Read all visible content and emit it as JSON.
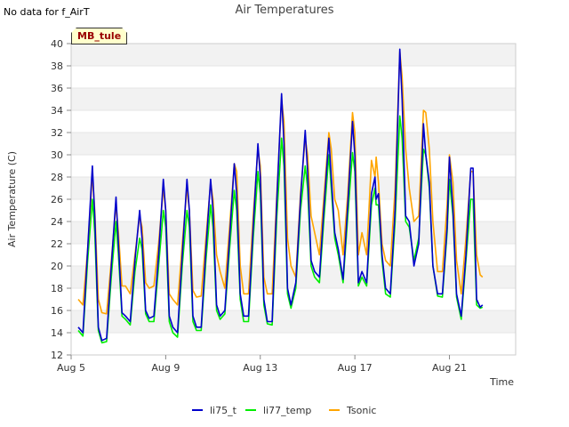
{
  "no_data_note": "No data for f_AirT",
  "site_badge": "MB_tule",
  "chart_data": {
    "type": "line",
    "title": "Air Temperatures",
    "xlabel": "Time",
    "ylabel": "Air Temperature (C)",
    "ylim": [
      12,
      40
    ],
    "xlim": [
      5,
      23.8
    ],
    "yticks": [
      12,
      14,
      16,
      18,
      20,
      22,
      24,
      26,
      28,
      30,
      32,
      34,
      36,
      38,
      40
    ],
    "xticks": [
      {
        "value": 5,
        "label": "Aug 5"
      },
      {
        "value": 9,
        "label": "Aug 9"
      },
      {
        "value": 13,
        "label": "Aug 13"
      },
      {
        "value": 17,
        "label": "Aug 17"
      },
      {
        "value": 21,
        "label": "Aug 21"
      }
    ],
    "grid": "horizontal alternating bands",
    "legend_position": "bottom",
    "series": [
      {
        "name": "li75_t",
        "color": "#0000cc",
        "x": [
          5.3,
          5.5,
          5.7,
          5.9,
          6.0,
          6.15,
          6.3,
          6.5,
          6.7,
          6.9,
          7.0,
          7.15,
          7.3,
          7.5,
          7.7,
          7.9,
          8.0,
          8.15,
          8.3,
          8.5,
          8.7,
          8.9,
          9.0,
          9.15,
          9.3,
          9.5,
          9.7,
          9.9,
          10.0,
          10.15,
          10.3,
          10.5,
          10.7,
          10.9,
          11.0,
          11.15,
          11.3,
          11.5,
          11.7,
          11.9,
          12.0,
          12.15,
          12.3,
          12.5,
          12.7,
          12.9,
          13.0,
          13.15,
          13.3,
          13.5,
          13.7,
          13.9,
          14.0,
          14.15,
          14.3,
          14.5,
          14.7,
          14.9,
          15.0,
          15.15,
          15.3,
          15.5,
          15.7,
          15.9,
          16.0,
          16.15,
          16.3,
          16.5,
          16.7,
          16.9,
          17.0,
          17.15,
          17.3,
          17.5,
          17.7,
          17.85,
          17.9,
          18.0,
          18.15,
          18.3,
          18.5,
          18.7,
          18.9,
          19.0,
          19.15,
          19.3,
          19.5,
          19.7,
          19.9,
          20.0,
          20.15,
          20.3,
          20.5,
          20.7,
          20.9,
          21.0,
          21.15,
          21.3,
          21.5,
          21.7,
          21.9,
          22.0,
          22.15,
          22.3,
          22.4
        ],
        "y": [
          14.5,
          14.0,
          21.5,
          29.0,
          24.5,
          14.5,
          13.3,
          13.5,
          20.0,
          26.2,
          22.0,
          15.8,
          15.5,
          15.0,
          20.5,
          25.0,
          22.5,
          16.0,
          15.3,
          15.5,
          21.0,
          27.8,
          25.0,
          15.5,
          14.5,
          14.0,
          21.0,
          27.8,
          25.0,
          15.5,
          14.5,
          14.5,
          21.5,
          27.8,
          25.0,
          16.5,
          15.5,
          16.0,
          22.5,
          29.2,
          26.5,
          17.5,
          15.5,
          15.5,
          23.5,
          31.0,
          28.0,
          17.0,
          15.0,
          15.0,
          26.0,
          35.5,
          31.0,
          18.0,
          16.5,
          18.5,
          26.0,
          32.2,
          28.5,
          20.5,
          19.5,
          19.0,
          25.5,
          31.5,
          28.0,
          23.0,
          21.5,
          18.8,
          25.5,
          33.0,
          30.0,
          18.5,
          19.5,
          18.5,
          26.5,
          28.0,
          26.0,
          26.5,
          21.0,
          18.0,
          17.5,
          25.0,
          39.5,
          35.0,
          24.5,
          24.0,
          20.0,
          22.0,
          32.8,
          30.0,
          27.5,
          20.0,
          17.5,
          17.5,
          23.5,
          29.8,
          25.0,
          17.5,
          15.5,
          21.0,
          28.8,
          28.8,
          17.0,
          16.3,
          16.5
        ]
      },
      {
        "name": "li77_temp",
        "color": "#00ee00",
        "x": [
          5.3,
          5.5,
          5.7,
          5.9,
          6.0,
          6.15,
          6.3,
          6.5,
          6.7,
          6.9,
          7.0,
          7.15,
          7.3,
          7.5,
          7.7,
          7.9,
          8.0,
          8.15,
          8.3,
          8.5,
          8.7,
          8.9,
          9.0,
          9.15,
          9.3,
          9.5,
          9.7,
          9.9,
          10.0,
          10.15,
          10.3,
          10.5,
          10.7,
          10.9,
          11.0,
          11.15,
          11.3,
          11.5,
          11.7,
          11.9,
          12.0,
          12.15,
          12.3,
          12.5,
          12.7,
          12.9,
          13.0,
          13.15,
          13.3,
          13.5,
          13.7,
          13.9,
          14.0,
          14.15,
          14.3,
          14.5,
          14.7,
          14.9,
          15.0,
          15.15,
          15.3,
          15.5,
          15.7,
          15.9,
          16.0,
          16.15,
          16.3,
          16.5,
          16.7,
          16.9,
          17.0,
          17.15,
          17.3,
          17.5,
          17.7,
          17.85,
          17.9,
          18.0,
          18.15,
          18.3,
          18.5,
          18.7,
          18.9,
          19.0,
          19.15,
          19.3,
          19.5,
          19.7,
          19.9,
          20.0,
          20.15,
          20.3,
          20.5,
          20.7,
          20.9,
          21.0,
          21.15,
          21.3,
          21.5,
          21.7,
          21.9,
          22.0,
          22.15,
          22.3,
          22.4
        ],
        "y": [
          14.2,
          13.7,
          20.5,
          26.0,
          23.0,
          14.2,
          13.1,
          13.2,
          19.0,
          24.0,
          21.0,
          15.5,
          15.2,
          14.7,
          19.5,
          22.5,
          21.5,
          15.7,
          15.0,
          15.0,
          20.0,
          25.0,
          23.5,
          15.0,
          14.0,
          13.6,
          20.0,
          25.0,
          23.5,
          15.0,
          14.2,
          14.2,
          20.5,
          25.5,
          23.5,
          16.0,
          15.2,
          15.7,
          21.5,
          26.8,
          25.0,
          17.0,
          15.0,
          15.0,
          22.5,
          28.5,
          26.5,
          16.5,
          14.8,
          14.7,
          24.5,
          31.5,
          29.0,
          17.5,
          16.2,
          18.0,
          25.0,
          29.0,
          27.0,
          20.0,
          19.0,
          18.5,
          24.5,
          30.0,
          27.0,
          22.5,
          21.0,
          18.5,
          24.5,
          30.2,
          28.5,
          18.2,
          19.0,
          18.2,
          25.5,
          27.0,
          25.5,
          25.5,
          20.5,
          17.5,
          17.2,
          24.0,
          33.5,
          31.5,
          24.0,
          23.5,
          20.5,
          22.5,
          30.5,
          30.0,
          27.0,
          20.0,
          17.3,
          17.2,
          23.0,
          27.8,
          24.5,
          17.2,
          15.2,
          20.5,
          26.0,
          26.0,
          16.5,
          16.2,
          16.3
        ]
      },
      {
        "name": "Tsonic",
        "color": "#ffa500",
        "x": [
          5.3,
          5.5,
          5.7,
          5.9,
          6.0,
          6.15,
          6.3,
          6.5,
          6.7,
          6.9,
          7.0,
          7.15,
          7.3,
          7.5,
          7.7,
          7.9,
          8.0,
          8.15,
          8.3,
          8.5,
          8.7,
          8.9,
          9.0,
          9.15,
          9.3,
          9.5,
          9.7,
          9.9,
          10.0,
          10.15,
          10.3,
          10.5,
          10.7,
          10.9,
          11.0,
          11.15,
          11.3,
          11.5,
          11.7,
          11.9,
          12.0,
          12.15,
          12.3,
          12.5,
          12.7,
          12.9,
          13.0,
          13.15,
          13.3,
          13.5,
          13.7,
          13.9,
          14.0,
          14.15,
          14.3,
          14.5,
          14.7,
          14.9,
          15.0,
          15.15,
          15.3,
          15.5,
          15.7,
          15.9,
          16.0,
          16.15,
          16.3,
          16.5,
          16.7,
          16.9,
          17.0,
          17.15,
          17.3,
          17.5,
          17.7,
          17.85,
          17.9,
          18.0,
          18.15,
          18.3,
          18.5,
          18.7,
          18.9,
          19.0,
          19.15,
          19.3,
          19.5,
          19.7,
          19.9,
          20.0,
          20.15,
          20.3,
          20.5,
          20.7,
          20.9,
          21.0,
          21.15,
          21.3,
          21.5,
          21.7,
          21.9,
          22.0,
          22.15,
          22.3,
          22.4
        ],
        "y": [
          17.0,
          16.5,
          21.5,
          28.2,
          25.0,
          17.0,
          15.8,
          15.7,
          20.5,
          25.5,
          23.0,
          18.2,
          18.2,
          17.5,
          21.0,
          24.5,
          23.5,
          18.5,
          18.0,
          18.2,
          22.0,
          27.0,
          25.0,
          17.5,
          17.0,
          16.5,
          22.0,
          27.0,
          25.0,
          17.8,
          17.2,
          17.3,
          22.5,
          27.5,
          26.0,
          21.0,
          19.5,
          18.0,
          23.5,
          29.2,
          28.5,
          20.0,
          17.5,
          17.5,
          24.5,
          30.5,
          29.0,
          19.0,
          17.5,
          17.5,
          26.5,
          35.0,
          33.0,
          22.5,
          20.0,
          19.0,
          26.5,
          31.5,
          30.0,
          24.5,
          23.0,
          21.0,
          26.5,
          32.0,
          30.5,
          26.0,
          25.0,
          21.0,
          26.5,
          33.8,
          32.0,
          21.0,
          23.0,
          21.0,
          29.5,
          28.0,
          29.8,
          27.5,
          22.0,
          20.5,
          20.0,
          27.0,
          39.3,
          37.0,
          30.5,
          27.0,
          24.0,
          24.5,
          34.0,
          33.8,
          30.5,
          24.0,
          19.5,
          19.5,
          25.5,
          30.0,
          27.5,
          20.5,
          17.5,
          22.5,
          28.5,
          28.5,
          21.0,
          19.2,
          19.0
        ]
      }
    ]
  }
}
